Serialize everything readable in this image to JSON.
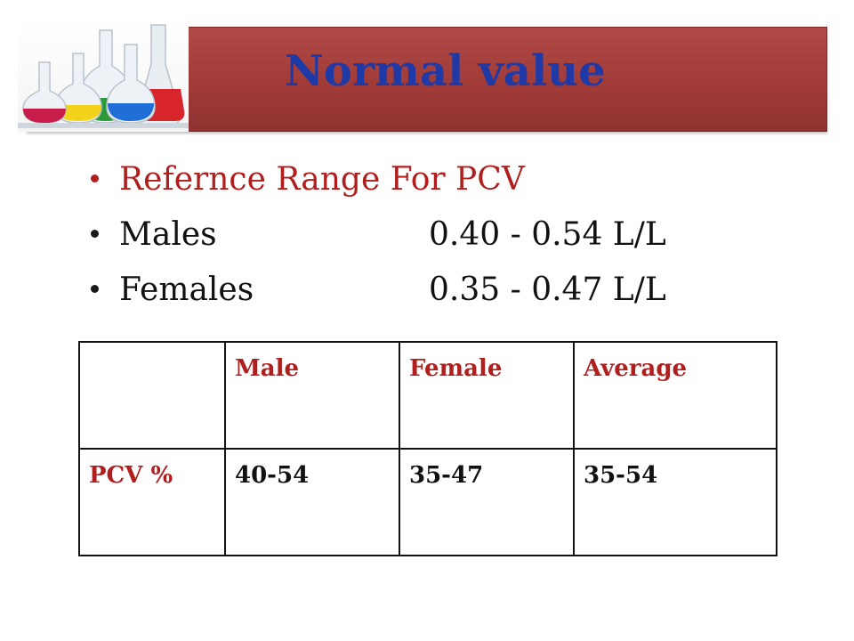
{
  "header": {
    "title": "Normal value",
    "image": "lab-flasks-icon"
  },
  "bullets": [
    {
      "label": "Refernce  Range  For  PCV",
      "value": ""
    },
    {
      "label": "Males",
      "value": "0.40 - 0.54 L/L"
    },
    {
      "label": "Females",
      "value": "0.35 - 0.47 L/L"
    }
  ],
  "table": {
    "header": [
      "",
      "Male",
      "Female",
      "Average"
    ],
    "rows": [
      {
        "label": "PCV %",
        "values": [
          "40-54",
          "35-47",
          "35-54"
        ]
      }
    ]
  },
  "colors": {
    "banner": "#a13b38",
    "title": "#1f3aa6",
    "accent_red": "#b01e1e",
    "text": "#111111"
  }
}
